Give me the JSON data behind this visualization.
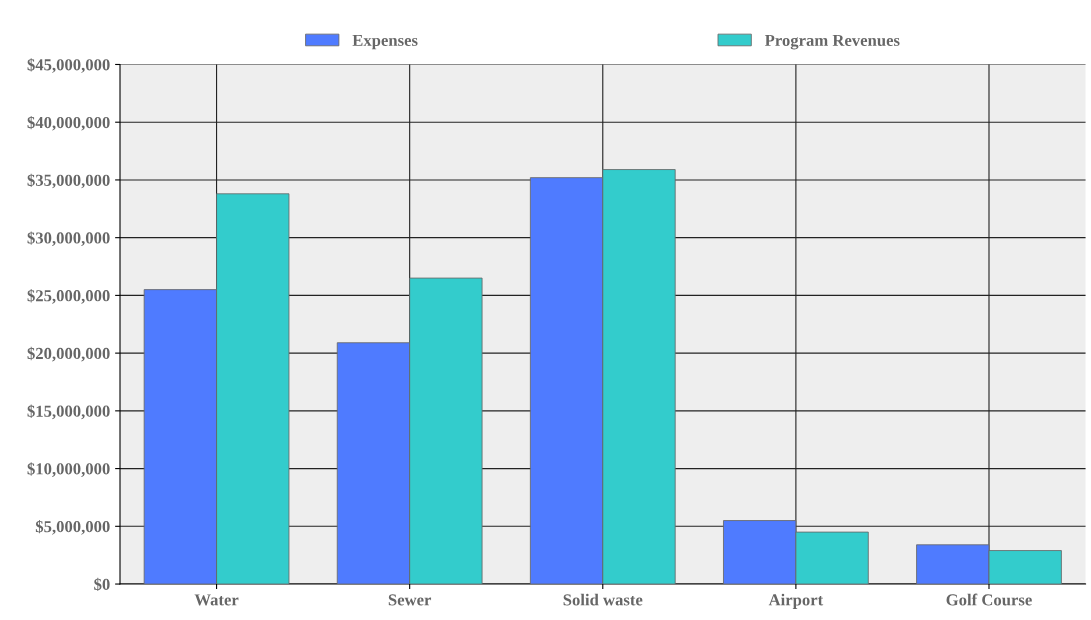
{
  "chart_data": {
    "type": "bar",
    "categories": [
      "Water",
      "Sewer",
      "Solid waste",
      "Airport",
      "Golf Course"
    ],
    "series": [
      {
        "name": "Expenses",
        "color": "#4f7bff",
        "values": [
          25500000,
          20900000,
          35200000,
          5500000,
          3400000
        ]
      },
      {
        "name": "Program Revenues",
        "color": "#33cccc",
        "values": [
          33800000,
          26500000,
          35900000,
          4500000,
          2900000
        ]
      }
    ],
    "ylim": [
      0,
      45000000
    ],
    "yticks": [
      {
        "value": 0,
        "label": "$0"
      },
      {
        "value": 5000000,
        "label": "$5,000,000"
      },
      {
        "value": 10000000,
        "label": "$10,000,000"
      },
      {
        "value": 15000000,
        "label": "$15,000,000"
      },
      {
        "value": 20000000,
        "label": "$20,000,000"
      },
      {
        "value": 25000000,
        "label": "$25,000,000"
      },
      {
        "value": 30000000,
        "label": "$30,000,000"
      },
      {
        "value": 35000000,
        "label": "$35,000,000"
      },
      {
        "value": 40000000,
        "label": "$40,000,000"
      },
      {
        "value": 45000000,
        "label": "$45,000,000"
      }
    ],
    "grid": true,
    "legend": "top"
  }
}
